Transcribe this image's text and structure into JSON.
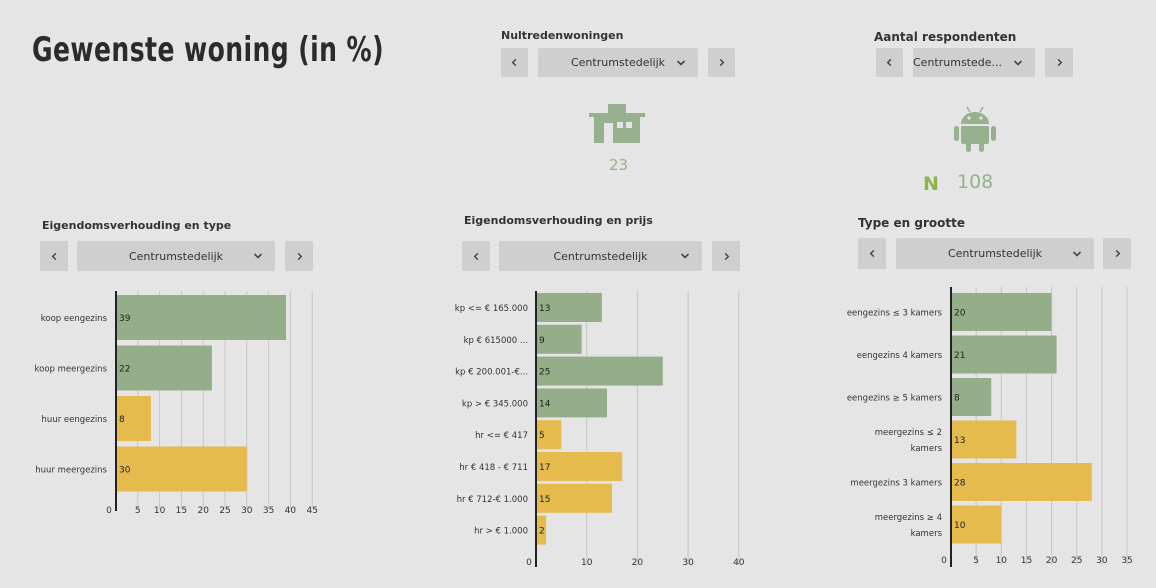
{
  "page": {
    "title": "Gewenste woning (in %)"
  },
  "colors": {
    "koop": "#94ae8a",
    "huur": "#e6bb4d",
    "icon": "#97b08d",
    "n_accent": "#8fb24b"
  },
  "nultreden": {
    "title": "Nultredenwoningen",
    "selected": "Centrumstedelijk",
    "icon": "house-icon",
    "value": "23"
  },
  "respondenten": {
    "title": "Aantal respondenten",
    "selected": "Centrumstede...",
    "icon": "android-icon",
    "n_label": "N",
    "value": "108"
  },
  "panels": [
    {
      "title": "Eigendomsverhouding en type",
      "selected": "Centrumstedelijk"
    },
    {
      "title": "Eigendomsverhouding en prijs",
      "selected": "Centrumstedelijk"
    },
    {
      "title": "Type en grootte",
      "selected": "Centrumstedelijk"
    }
  ],
  "chart_data": [
    {
      "type": "bar",
      "orientation": "horizontal",
      "title": "Eigendomsverhouding en type",
      "categories": [
        "koop eengezins",
        "koop meergezins",
        "huur eengezins",
        "huur meergezins"
      ],
      "values": [
        39,
        22,
        8,
        30
      ],
      "groups": [
        "koop",
        "koop",
        "huur",
        "huur"
      ],
      "xlim": [
        0,
        45
      ],
      "ticks": [
        0,
        5,
        10,
        15,
        20,
        25,
        30,
        35,
        40,
        45
      ],
      "grid": true
    },
    {
      "type": "bar",
      "orientation": "horizontal",
      "title": "Eigendomsverhouding en prijs",
      "categories": [
        "kp <= € 165.000",
        "kp € 615000 ...",
        "kp € 200.001-€...",
        "kp > € 345.000",
        "hr <= € 417",
        "hr € 418 - € 711",
        "hr € 712-€ 1.000",
        "hr > € 1.000"
      ],
      "values": [
        13,
        9,
        25,
        14,
        5,
        17,
        15,
        2
      ],
      "groups": [
        "koop",
        "koop",
        "koop",
        "koop",
        "huur",
        "huur",
        "huur",
        "huur"
      ],
      "xlim": [
        0,
        40
      ],
      "ticks": [
        0,
        10,
        20,
        30,
        40
      ],
      "grid": true
    },
    {
      "type": "bar",
      "orientation": "horizontal",
      "title": "Type en grootte",
      "categories": [
        [
          "eengezins ≤ 3 kamers"
        ],
        [
          "eengezins 4 kamers"
        ],
        [
          "eengezins ≥ 5 kamers"
        ],
        [
          "meergezins ≤ 2",
          "kamers"
        ],
        [
          "meergezins 3 kamers"
        ],
        [
          "meergezins ≥ 4",
          "kamers"
        ]
      ],
      "values": [
        20,
        21,
        8,
        13,
        28,
        10
      ],
      "groups": [
        "koop",
        "koop",
        "koop",
        "huur",
        "huur",
        "huur"
      ],
      "xlim": [
        0,
        35
      ],
      "ticks": [
        0,
        5,
        10,
        15,
        20,
        25,
        30,
        35
      ],
      "grid": true
    }
  ]
}
